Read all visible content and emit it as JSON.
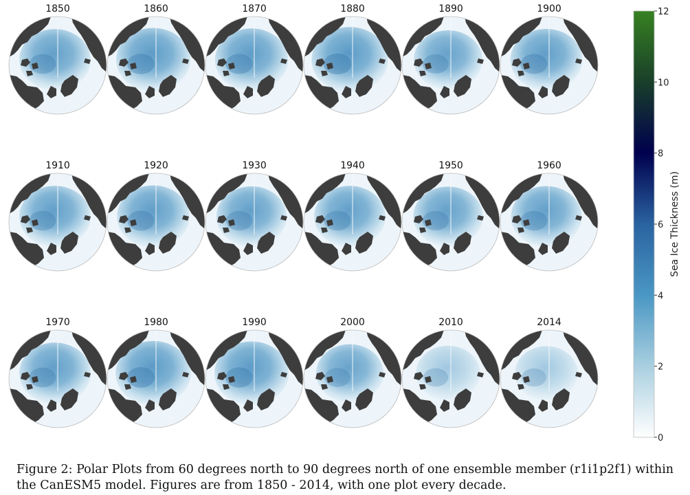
{
  "panels": [
    {
      "year": "1850",
      "thickness": 0.55
    },
    {
      "year": "1860",
      "thickness": 0.6
    },
    {
      "year": "1870",
      "thickness": 0.58
    },
    {
      "year": "1880",
      "thickness": 0.64
    },
    {
      "year": "1890",
      "thickness": 0.5
    },
    {
      "year": "1900",
      "thickness": 0.56
    },
    {
      "year": "1910",
      "thickness": 0.55
    },
    {
      "year": "1920",
      "thickness": 0.57
    },
    {
      "year": "1930",
      "thickness": 0.53
    },
    {
      "year": "1940",
      "thickness": 0.55
    },
    {
      "year": "1950",
      "thickness": 0.52
    },
    {
      "year": "1960",
      "thickness": 0.54
    },
    {
      "year": "1970",
      "thickness": 0.55
    },
    {
      "year": "1980",
      "thickness": 0.62
    },
    {
      "year": "1990",
      "thickness": 0.6
    },
    {
      "year": "2000",
      "thickness": 0.48
    },
    {
      "year": "2010",
      "thickness": 0.42
    },
    {
      "year": "2014",
      "thickness": 0.4
    }
  ],
  "colorbar": {
    "label": "Sea Ice Thickness (m)",
    "min": 0,
    "max": 12,
    "ticks": [
      "0",
      "2",
      "4",
      "6",
      "8",
      "10",
      "12"
    ],
    "stops": [
      "#ffffff",
      "#a9cfe0",
      "#4a97c4",
      "#2a63a0",
      "#00004e",
      "#193f2a",
      "#378121"
    ]
  },
  "colors": {
    "land": "#3d3d3d",
    "ice_thin": "#eef5fa",
    "ice_thick": "#4f93c2"
  },
  "caption": "Figure 2: Polar Plots from 60 degrees north to 90 degrees north of one ensemble member (r1i1p2f1) within the CanESM5 model. Figures are from 1850 - 2014, with one plot every decade."
}
